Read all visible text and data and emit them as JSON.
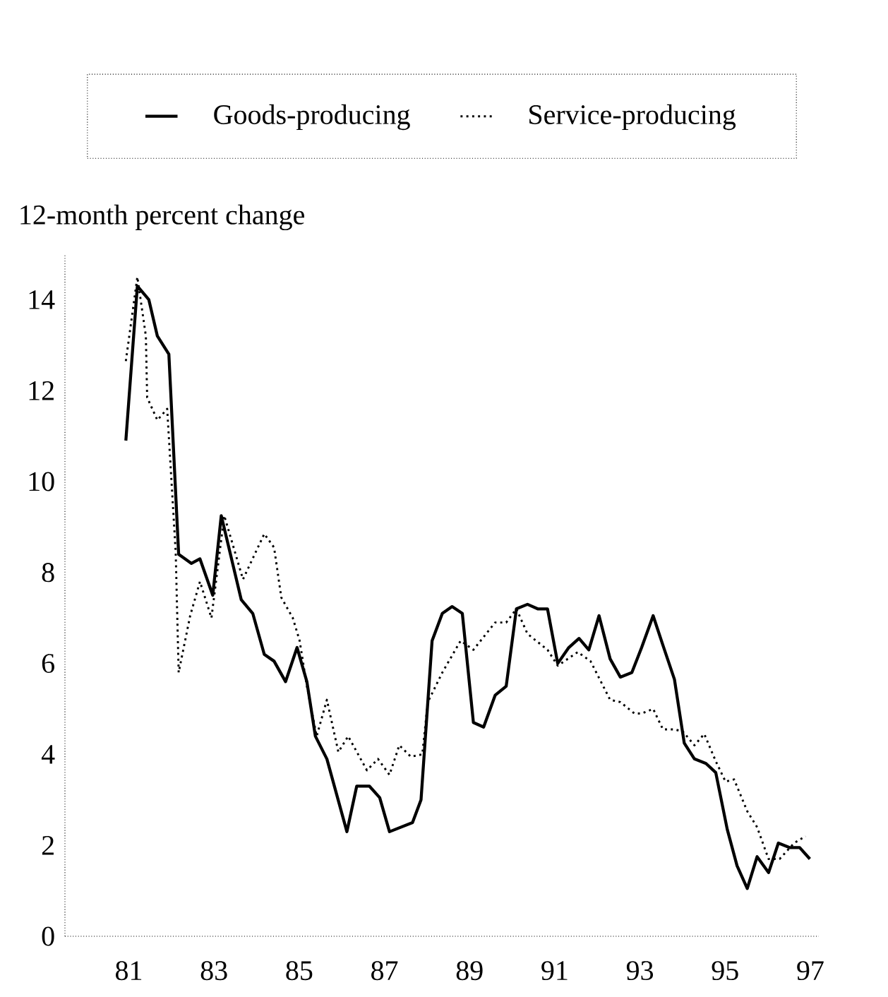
{
  "chart_data": {
    "type": "line",
    "ylabel": "12-month percent change",
    "xlim": [
      1979.5,
      1997.2
    ],
    "ylim": [
      0,
      15
    ],
    "xticks": [
      {
        "value": 1981,
        "label": "81"
      },
      {
        "value": 1983,
        "label": "83"
      },
      {
        "value": 1985,
        "label": "85"
      },
      {
        "value": 1987,
        "label": "87"
      },
      {
        "value": 1989,
        "label": "89"
      },
      {
        "value": 1991,
        "label": "91"
      },
      {
        "value": 1993,
        "label": "93"
      },
      {
        "value": 1995,
        "label": "95"
      },
      {
        "value": 1997,
        "label": "97"
      }
    ],
    "yticks": [
      0,
      2,
      4,
      6,
      8,
      10,
      12,
      14
    ],
    "grid": false,
    "legend": "top",
    "series": [
      {
        "name": "Goods-producing",
        "color": "#000000",
        "line_style": "solid",
        "x": [
          1980.93,
          1981.2,
          1981.47,
          1981.67,
          1981.94,
          1982.17,
          1982.47,
          1982.67,
          1982.97,
          1983.17,
          1983.64,
          1983.91,
          1984.18,
          1984.41,
          1984.68,
          1984.95,
          1985.18,
          1985.38,
          1985.65,
          1986.12,
          1986.35,
          1986.65,
          1986.89,
          1987.12,
          1987.66,
          1987.86,
          1988.12,
          1988.36,
          1988.59,
          1988.83,
          1989.09,
          1989.33,
          1989.6,
          1989.86,
          1990.1,
          1990.36,
          1990.6,
          1990.83,
          1991.07,
          1991.33,
          1991.57,
          1991.8,
          1992.04,
          1992.3,
          1992.54,
          1992.81,
          1993.04,
          1993.31,
          1993.54,
          1993.81,
          1994.04,
          1994.28,
          1994.55,
          1994.78,
          1995.05,
          1995.28,
          1995.52,
          1995.75,
          1996.02,
          1996.25,
          1996.52,
          1996.75,
          1996.99
        ],
        "values": [
          10.9,
          14.3,
          14.0,
          13.2,
          12.8,
          8.4,
          8.2,
          8.3,
          7.5,
          9.25,
          7.4,
          7.1,
          6.2,
          6.05,
          5.6,
          6.35,
          5.6,
          4.4,
          3.9,
          2.3,
          3.3,
          3.3,
          3.05,
          2.3,
          2.5,
          3.0,
          6.5,
          7.1,
          7.25,
          7.1,
          4.7,
          4.6,
          5.3,
          5.5,
          7.2,
          7.3,
          7.2,
          7.2,
          6.0,
          6.35,
          6.55,
          6.3,
          7.05,
          6.1,
          5.7,
          5.8,
          6.35,
          7.05,
          6.4,
          5.65,
          4.25,
          3.9,
          3.8,
          3.6,
          2.35,
          1.55,
          1.05,
          1.75,
          1.4,
          2.05,
          1.95,
          1.95,
          1.7
        ]
      },
      {
        "name": "Service-producing",
        "color": "#000000",
        "line_style": "dotted",
        "x": [
          1980.93,
          1981.2,
          1981.4,
          1981.43,
          1981.67,
          1981.9,
          1982.1,
          1982.17,
          1982.44,
          1982.67,
          1982.94,
          1983.24,
          1983.68,
          1984.18,
          1984.41,
          1984.58,
          1984.85,
          1985.01,
          1985.18,
          1985.41,
          1985.65,
          1985.92,
          1986.15,
          1986.59,
          1986.85,
          1987.12,
          1987.35,
          1987.62,
          1987.89,
          1988.02,
          1988.36,
          1988.79,
          1989.09,
          1989.6,
          1989.86,
          1990.1,
          1990.36,
          1990.83,
          1991.07,
          1991.54,
          1991.84,
          1992.3,
          1992.54,
          1992.87,
          1993.04,
          1993.31,
          1993.54,
          1993.81,
          1994.01,
          1994.28,
          1994.51,
          1994.78,
          1995.01,
          1995.21,
          1995.52,
          1995.75,
          1996.02,
          1996.28,
          1996.62,
          1996.89
        ],
        "values": [
          12.65,
          14.5,
          13.2,
          11.85,
          11.35,
          11.6,
          8.45,
          5.8,
          7.05,
          7.8,
          7.0,
          9.25,
          7.85,
          8.85,
          8.55,
          7.45,
          7.0,
          6.5,
          5.5,
          4.4,
          5.2,
          4.05,
          4.4,
          3.65,
          3.9,
          3.55,
          4.2,
          3.95,
          4.0,
          5.15,
          5.8,
          6.5,
          6.3,
          6.9,
          6.9,
          7.2,
          6.65,
          6.3,
          5.95,
          6.25,
          6.05,
          5.2,
          5.15,
          4.9,
          4.9,
          5.0,
          4.55,
          4.55,
          4.5,
          4.2,
          4.45,
          3.85,
          3.4,
          3.45,
          2.75,
          2.4,
          1.7,
          1.7,
          2.05,
          2.2
        ]
      }
    ]
  }
}
